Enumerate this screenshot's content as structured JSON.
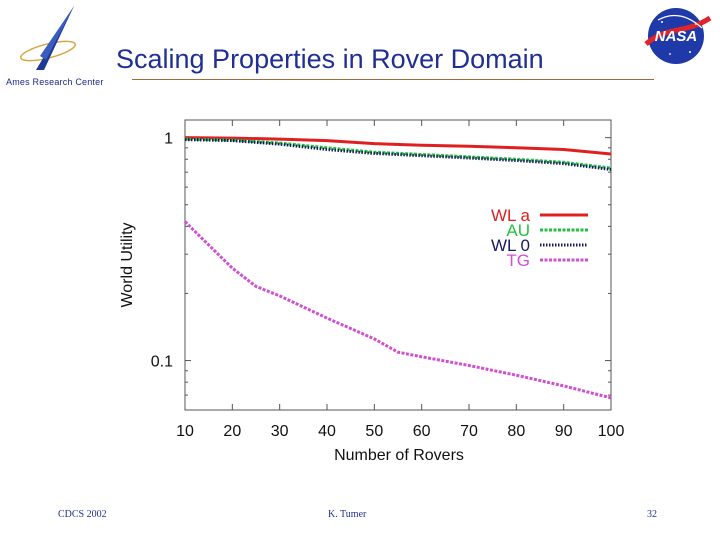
{
  "header": {
    "title": "Scaling Properties  in Rover Domain",
    "center_name": "Ames Research Center"
  },
  "footer": {
    "left": "CDCS 2002",
    "center": "K. Tumer",
    "page_number": "32"
  },
  "chart_data": {
    "type": "line",
    "title": "",
    "xlabel": "Number of Rovers",
    "ylabel": "World Utility",
    "xlim": [
      10,
      100
    ],
    "ylim": [
      0.06,
      1.2
    ],
    "yscale": "log",
    "x_ticks": [
      "10",
      "20",
      "30",
      "40",
      "50",
      "60",
      "70",
      "80",
      "90",
      "100"
    ],
    "y_ticks": [
      {
        "value": 1,
        "label": "1"
      },
      {
        "value": 0.1,
        "label": "0.1"
      }
    ],
    "legend_position": "center-right",
    "series": [
      {
        "name": "WL a",
        "color": "#e02020",
        "style": "solid",
        "x": [
          10,
          20,
          30,
          40,
          50,
          60,
          70,
          80,
          90,
          100
        ],
        "values": [
          1.0,
          0.995,
          0.985,
          0.97,
          0.94,
          0.925,
          0.915,
          0.9,
          0.885,
          0.845
        ]
      },
      {
        "name": "AU",
        "color": "#22c040",
        "style": "dashed",
        "x": [
          10,
          20,
          30,
          40,
          50,
          60,
          70,
          80,
          90,
          100
        ],
        "values": [
          0.985,
          0.975,
          0.945,
          0.9,
          0.86,
          0.84,
          0.82,
          0.8,
          0.775,
          0.73
        ]
      },
      {
        "name": "WL 0",
        "color": "#1a1a60",
        "style": "dotted",
        "x": [
          10,
          20,
          30,
          40,
          50,
          60,
          70,
          80,
          90,
          100
        ],
        "values": [
          0.98,
          0.97,
          0.935,
          0.885,
          0.85,
          0.83,
          0.81,
          0.79,
          0.765,
          0.72
        ]
      },
      {
        "name": "TG",
        "color": "#d050d0",
        "style": "dashed",
        "x": [
          10,
          15,
          20,
          25,
          30,
          40,
          50,
          55,
          60,
          70,
          80,
          90,
          100
        ],
        "values": [
          0.42,
          0.33,
          0.26,
          0.215,
          0.195,
          0.155,
          0.125,
          0.109,
          0.104,
          0.095,
          0.086,
          0.077,
          0.068
        ]
      }
    ]
  }
}
